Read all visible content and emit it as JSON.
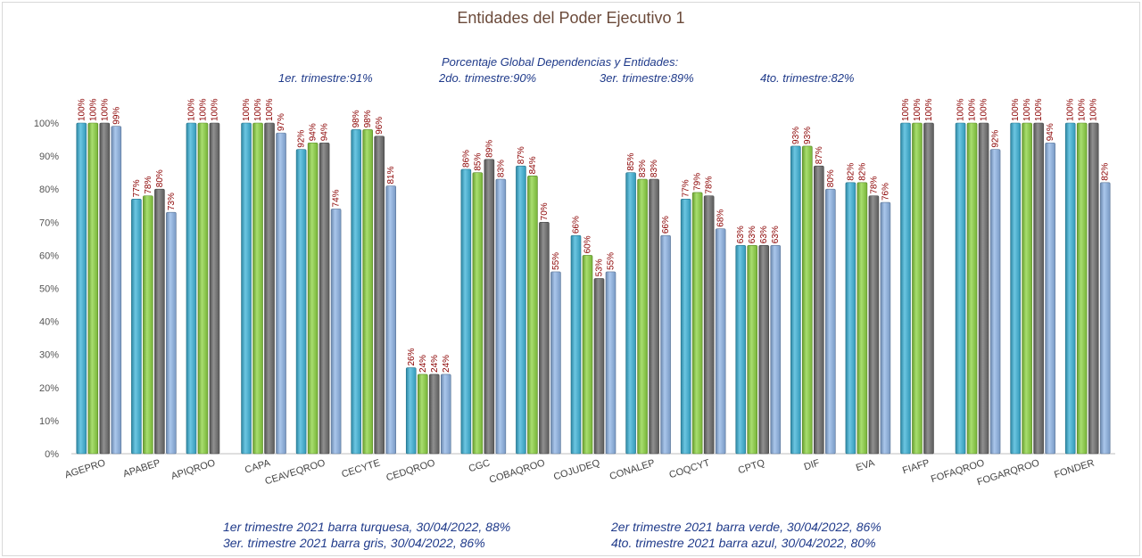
{
  "chart_data": {
    "type": "bar",
    "title": "Entidades del Poder Ejecutivo 1",
    "subtitle": "Porcentaje Global  Dependencias y Entidades:",
    "quarter_summary": [
      "1er. trimestre:91%",
      "2do. trimestre:90%",
      "3er. trimestre:89%",
      "4to. trimestre:82%"
    ],
    "footnotes": [
      "1er trimestre  2021 barra turquesa,  30/04/2022, 88%",
      "2er trimestre  2021 barra verde,  30/04/2022, 86%",
      "3er. trimestre 2021 barra gris, 30/04/2022, 86%",
      "4to. trimestre 2021 barra azul, 30/04/2022, 80%"
    ],
    "ylim": [
      0,
      100
    ],
    "yticks": [
      0,
      10,
      20,
      30,
      40,
      50,
      60,
      70,
      80,
      90,
      100
    ],
    "grid": false,
    "categories": [
      "AGEPRO",
      "APABEP",
      "APIQROO",
      "CAPA",
      "CEAVEQROO",
      "CECYTE",
      "CEDQROO",
      "CGC",
      "COBAQROO",
      "COJUDEQ",
      "CONALEP",
      "COQCYT",
      "CPTQ",
      "DIF",
      "EVA",
      "FIAFP",
      "FOFAQROO",
      "FOGARQROO",
      "FONDER"
    ],
    "series": [
      {
        "color": "#3bb3d8",
        "values": [
          100,
          77,
          100,
          100,
          92,
          98,
          26,
          86,
          87,
          66,
          85,
          77,
          63,
          93,
          82,
          100,
          100,
          100,
          100
        ]
      },
      {
        "color": "#8bd33f",
        "values": [
          100,
          78,
          100,
          100,
          94,
          98,
          24,
          85,
          84,
          60,
          83,
          79,
          63,
          93,
          82,
          100,
          100,
          100,
          100
        ]
      },
      {
        "color": "#6b6b6b",
        "values": [
          100,
          80,
          100,
          100,
          94,
          96,
          24,
          89,
          70,
          53,
          83,
          78,
          63,
          87,
          78,
          100,
          100,
          100,
          100
        ]
      },
      {
        "color": "#8db4e6",
        "values": [
          99,
          73,
          null,
          97,
          74,
          81,
          24,
          83,
          55,
          55,
          66,
          68,
          63,
          80,
          76,
          null,
          92,
          94,
          82
        ]
      }
    ]
  }
}
